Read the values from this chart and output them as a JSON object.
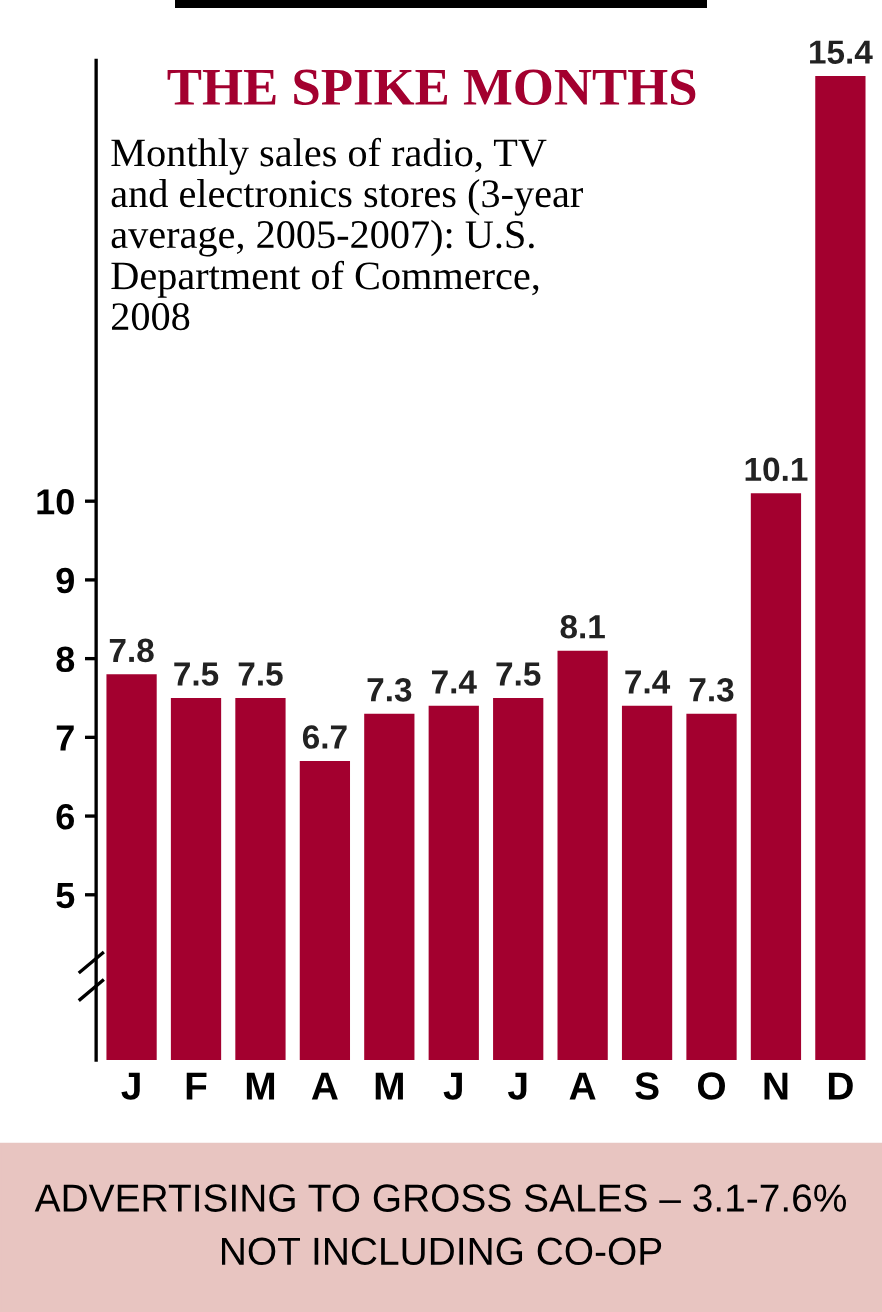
{
  "chart_data": {
    "type": "bar",
    "title": "THE SPIKE MONTHS",
    "subtitle": "Monthly sales of radio, TV\nand electronics stores (3-year\naverage, 2005-2007): U.S.\nDepartment of Commerce,\n2008",
    "categories": [
      "J",
      "F",
      "M",
      "A",
      "M",
      "J",
      "J",
      "A",
      "S",
      "O",
      "N",
      "D"
    ],
    "values": [
      7.8,
      7.5,
      7.5,
      6.7,
      7.3,
      7.4,
      7.5,
      8.1,
      7.4,
      7.3,
      10.1,
      15.4
    ],
    "color": "#a3002f",
    "ylim": [
      2.9,
      15.6
    ],
    "yticks": [
      5,
      6,
      7,
      8,
      9,
      10
    ],
    "grid": false,
    "data_labels": true,
    "annotations": [
      "ADVERTISING TO GROSS SALES – 3.1-7.6%\nNOT INCLUDING CO-OP"
    ]
  }
}
